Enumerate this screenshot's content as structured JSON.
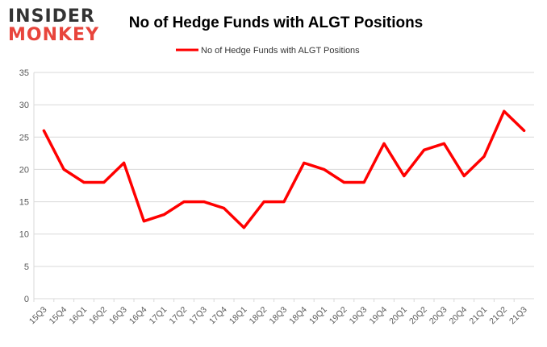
{
  "logo": {
    "line1": "INSIDER",
    "line2": "MONKEY"
  },
  "colors": {
    "series": "#ff0000",
    "logo_dark": "#333333",
    "logo_accent": "#e8453c",
    "grid": "#d9d9d9",
    "axis_text": "#595959"
  },
  "chart_data": {
    "type": "line",
    "title": "No of Hedge Funds with ALGT Positions",
    "legend_position": "top-center",
    "grid": true,
    "ylim": [
      0,
      35
    ],
    "yticks": [
      0,
      5,
      10,
      15,
      20,
      25,
      30,
      35
    ],
    "categories": [
      "15Q3",
      "15Q4",
      "16Q1",
      "16Q2",
      "16Q3",
      "16Q4",
      "17Q1",
      "17Q2",
      "17Q3",
      "17Q4",
      "18Q1",
      "18Q2",
      "18Q3",
      "18Q4",
      "19Q1",
      "19Q2",
      "19Q3",
      "19Q4",
      "20Q1",
      "20Q2",
      "20Q3",
      "20Q4",
      "21Q1",
      "21Q2",
      "21Q3"
    ],
    "series": [
      {
        "name": "No of Hedge Funds with ALGT Positions",
        "values": [
          26,
          20,
          18,
          18,
          21,
          12,
          13,
          15,
          15,
          14,
          11,
          15,
          15,
          21,
          20,
          18,
          18,
          24,
          19,
          23,
          24,
          19,
          22,
          29,
          26
        ]
      }
    ]
  }
}
